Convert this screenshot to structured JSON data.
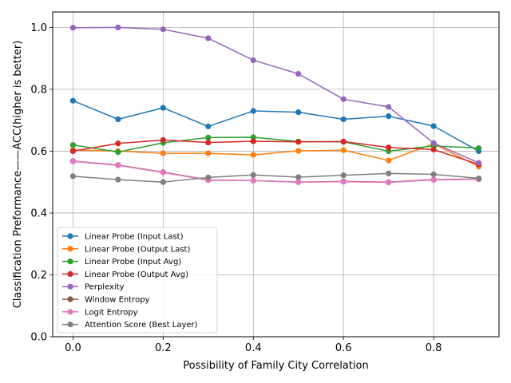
{
  "chart_data": {
    "type": "line",
    "title": "",
    "xlabel": "Possibility of Family City Correlation",
    "ylabel": "Classification Preformance——ACC(higher is better)",
    "xlim": [
      -0.045,
      0.945
    ],
    "ylim": [
      0.0,
      1.05
    ],
    "xticks": [
      0.0,
      0.2,
      0.4,
      0.6,
      0.8
    ],
    "xtick_labels": [
      "0.0",
      "0.2",
      "0.4",
      "0.6",
      "0.8"
    ],
    "yticks": [
      0.0,
      0.2,
      0.4,
      0.6,
      0.8,
      1.0
    ],
    "ytick_labels": [
      "0.0",
      "0.2",
      "0.4",
      "0.6",
      "0.8",
      "1.0"
    ],
    "grid": true,
    "legend_position": "lower-left",
    "x": [
      0.0,
      0.1,
      0.2,
      0.3,
      0.4,
      0.5,
      0.6,
      0.7,
      0.8,
      0.9
    ],
    "series": [
      {
        "name": "Linear Probe (Input Last)",
        "color": "#1f77b4",
        "values": [
          0.763,
          0.703,
          0.74,
          0.68,
          0.73,
          0.726,
          0.703,
          0.713,
          0.681,
          0.6
        ]
      },
      {
        "name": "Linear Probe (Output Last)",
        "color": "#ff7f0e",
        "values": [
          0.604,
          0.6,
          0.593,
          0.593,
          0.588,
          0.601,
          0.603,
          0.57,
          0.624,
          0.55
        ]
      },
      {
        "name": "Linear Probe (Input Avg)",
        "color": "#2ca02c",
        "values": [
          0.62,
          0.597,
          0.627,
          0.644,
          0.645,
          0.631,
          0.63,
          0.6,
          0.617,
          0.61
        ]
      },
      {
        "name": "Linear Probe (Output Avg)",
        "color": "#d62728",
        "values": [
          0.6,
          0.625,
          0.636,
          0.628,
          0.632,
          0.63,
          0.631,
          0.612,
          0.605,
          0.557
        ]
      },
      {
        "name": "Perplexity",
        "color": "#9467bd",
        "values": [
          0.999,
          1.0,
          0.994,
          0.965,
          0.894,
          0.85,
          0.768,
          0.743,
          0.626,
          0.562
        ]
      },
      {
        "name": "Window Entropy",
        "color": "#8c564b",
        "values": [
          0.568,
          0.555,
          0.532,
          0.507,
          0.505,
          0.5,
          0.502,
          0.5,
          0.508,
          0.51
        ]
      },
      {
        "name": "Logit Entropy",
        "color": "#e377c2",
        "values": [
          0.567,
          0.554,
          0.531,
          0.506,
          0.505,
          0.5,
          0.501,
          0.499,
          0.507,
          0.509
        ]
      },
      {
        "name": "Attention Score (Best Layer)",
        "color": "#7f7f7f",
        "values": [
          0.519,
          0.508,
          0.5,
          0.515,
          0.523,
          0.516,
          0.522,
          0.528,
          0.525,
          0.512
        ]
      }
    ]
  }
}
